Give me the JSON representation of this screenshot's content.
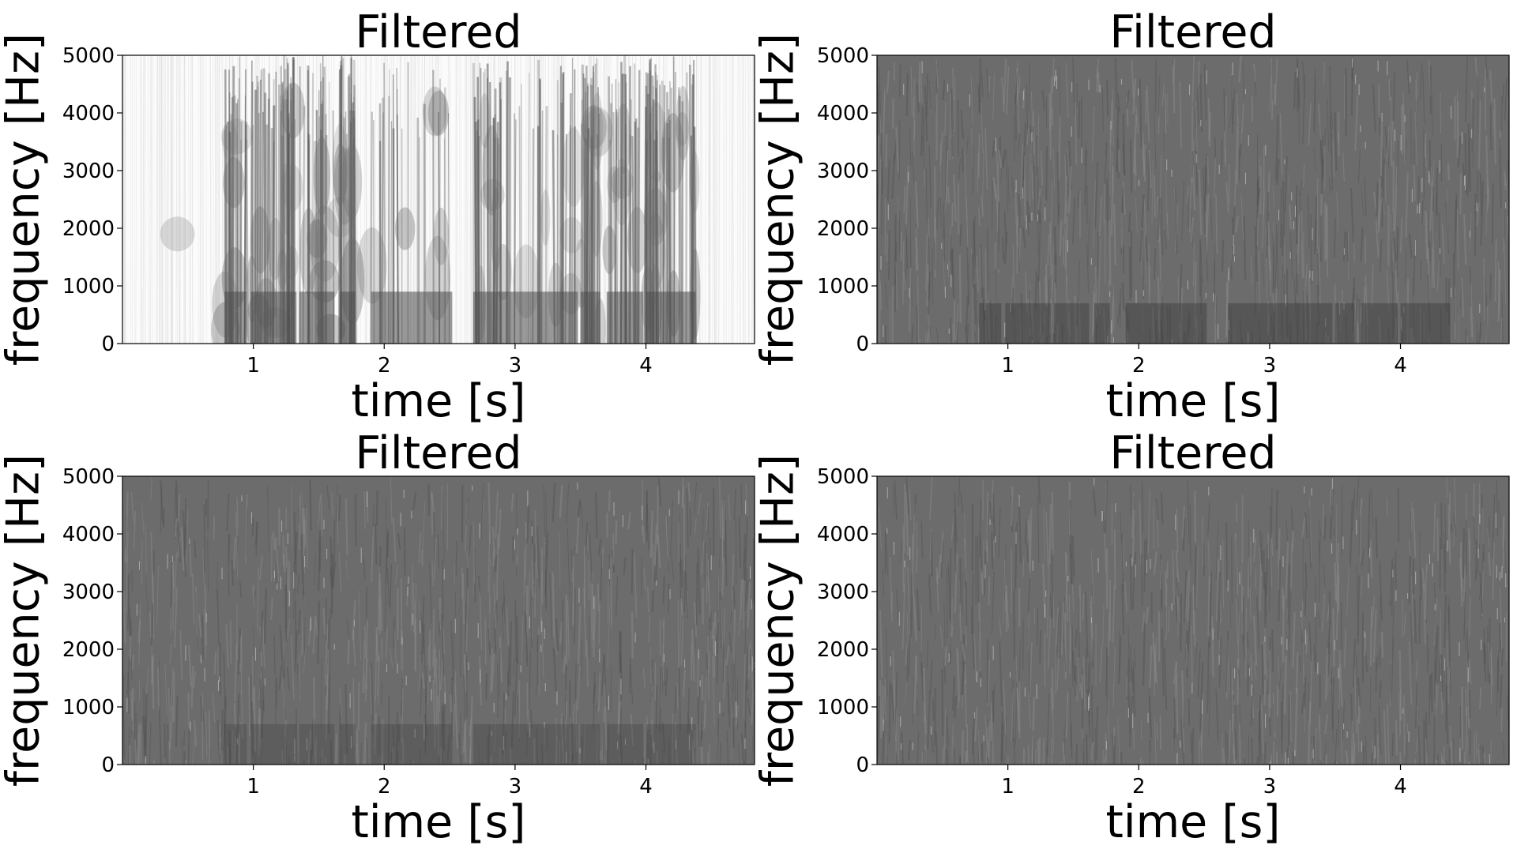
{
  "chart_data": [
    {
      "type": "heatmap",
      "title": "Filtered",
      "xlabel": "time [s]",
      "ylabel": "frequency [Hz]",
      "xlim": [
        0,
        4.83
      ],
      "ylim": [
        0,
        5000
      ],
      "xticks": [
        1,
        2,
        3,
        4
      ],
      "yticks": [
        0,
        1000,
        2000,
        3000,
        4000,
        5000
      ],
      "colormap": "Greys",
      "grid": false,
      "texture": "speech"
    },
    {
      "type": "heatmap",
      "title": "Filtered",
      "xlabel": "time [s]",
      "ylabel": "frequency [Hz]",
      "xlim": [
        0,
        4.83
      ],
      "ylim": [
        0,
        5000
      ],
      "xticks": [
        1,
        2,
        3,
        4
      ],
      "yticks": [
        0,
        1000,
        2000,
        3000,
        4000,
        5000
      ],
      "colormap": "Greys",
      "grid": false,
      "texture": "noise"
    },
    {
      "type": "heatmap",
      "title": "Filtered",
      "xlabel": "time [s]",
      "ylabel": "frequency [Hz]",
      "xlim": [
        0,
        4.83
      ],
      "ylim": [
        0,
        5000
      ],
      "xticks": [
        1,
        2,
        3,
        4
      ],
      "yticks": [
        0,
        1000,
        2000,
        3000,
        4000,
        5000
      ],
      "colormap": "Greys",
      "grid": false,
      "texture": "noise"
    },
    {
      "type": "heatmap",
      "title": "Filtered",
      "xlabel": "time [s]",
      "ylabel": "frequency [Hz]",
      "xlim": [
        0,
        4.83
      ],
      "ylim": [
        0,
        5000
      ],
      "xticks": [
        1,
        2,
        3,
        4
      ],
      "yticks": [
        0,
        1000,
        2000,
        3000,
        4000,
        5000
      ],
      "colormap": "Greys",
      "grid": false,
      "texture": "noise"
    }
  ]
}
